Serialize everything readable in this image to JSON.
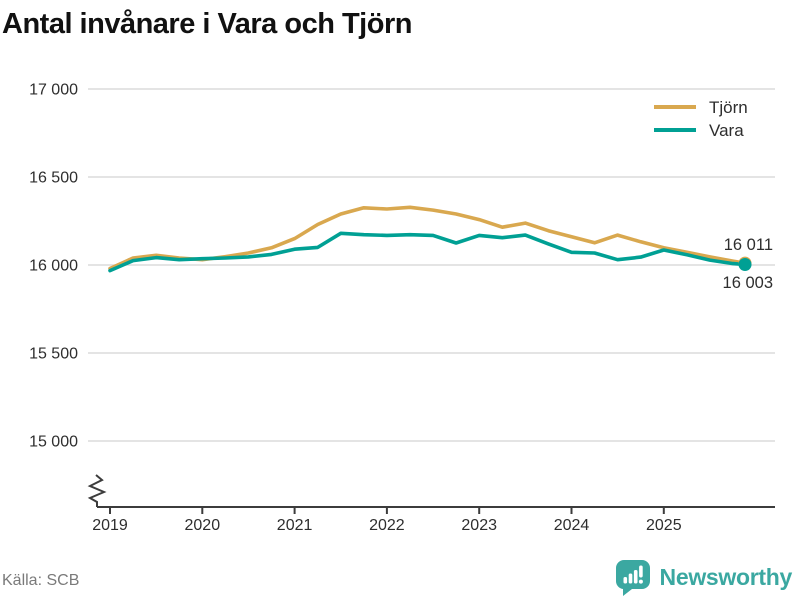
{
  "title": "Antal invånare i Vara och Tjörn",
  "source": "Källa: SCB",
  "brand": {
    "name": "Newsworthy",
    "color": "#3ba8a1"
  },
  "colors": {
    "tjorn": "#D9A84F",
    "vara": "#00A094",
    "grid": "#DCDCDC",
    "axis": "#3C3C3C",
    "tick_text": "#2E2E2E",
    "end_label": "#2E2E2E",
    "title": "#111111",
    "source_text": "#7A7A7A"
  },
  "chart_data": {
    "type": "line",
    "title": "Antal invånare i Vara och Tjörn",
    "xlabel": "",
    "ylabel": "",
    "ylim": [
      15000,
      17000
    ],
    "axis_break": true,
    "grid": "horizontal",
    "legend_position": "top-right",
    "yticks": [
      {
        "value": 17000,
        "label": "17 000"
      },
      {
        "value": 16500,
        "label": "16 500"
      },
      {
        "value": 16000,
        "label": "16 000"
      },
      {
        "value": 15500,
        "label": "15 500"
      },
      {
        "value": 15000,
        "label": "15 000"
      }
    ],
    "xticks": [
      {
        "value": 2019,
        "label": "2019"
      },
      {
        "value": 2020,
        "label": "2020"
      },
      {
        "value": 2021,
        "label": "2021"
      },
      {
        "value": 2022,
        "label": "2022"
      },
      {
        "value": 2023,
        "label": "2023"
      },
      {
        "value": 2024,
        "label": "2024"
      },
      {
        "value": 2025,
        "label": "2025"
      }
    ],
    "x": [
      2019.0,
      2019.25,
      2019.5,
      2019.75,
      2020.0,
      2020.25,
      2020.5,
      2020.75,
      2021.0,
      2021.25,
      2021.5,
      2021.75,
      2022.0,
      2022.25,
      2022.5,
      2022.75,
      2023.0,
      2023.25,
      2023.5,
      2023.75,
      2024.0,
      2024.25,
      2024.5,
      2024.75,
      2025.0,
      2025.25,
      2025.5,
      2025.75,
      2025.88
    ],
    "series": [
      {
        "name": "Tjörn",
        "color": "#D9A84F",
        "end_label": "16 011",
        "end_value": 16011,
        "values": [
          15980,
          16040,
          16055,
          16040,
          16030,
          16048,
          16068,
          16098,
          16150,
          16230,
          16290,
          16325,
          16318,
          16328,
          16312,
          16290,
          16258,
          16215,
          16238,
          16195,
          16160,
          16126,
          16170,
          16132,
          16098,
          16072,
          16046,
          16022,
          16011
        ]
      },
      {
        "name": "Vara",
        "color": "#00A094",
        "end_label": "16 003",
        "end_value": 16003,
        "values": [
          15968,
          16025,
          16042,
          16030,
          16036,
          16040,
          16046,
          16060,
          16090,
          16100,
          16180,
          16172,
          16168,
          16172,
          16168,
          16125,
          16168,
          16155,
          16170,
          16120,
          16072,
          16068,
          16030,
          16045,
          16085,
          16058,
          16028,
          16008,
          16003
        ]
      }
    ]
  }
}
